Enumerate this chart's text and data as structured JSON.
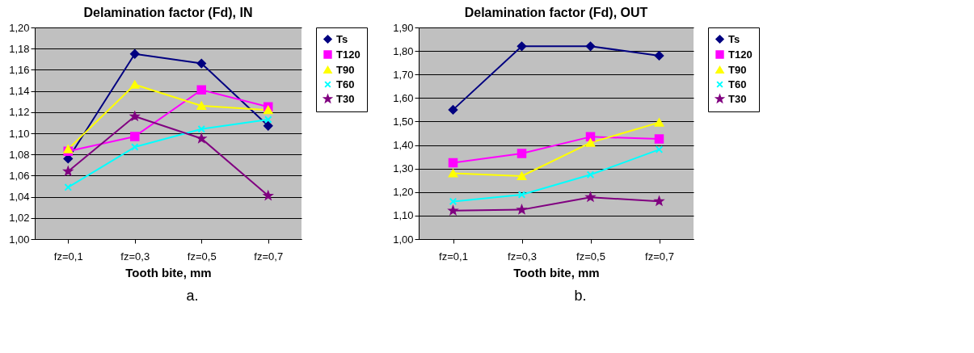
{
  "chart_data": [
    {
      "type": "line",
      "title": "Delamination factor (Fd), IN",
      "xlabel": "Tooth bite, mm",
      "categories": [
        "fz=0,1",
        "fz=0,3",
        "fz=0,5",
        "fz=0,7"
      ],
      "ylim": [
        1.0,
        1.2
      ],
      "yticks": [
        {
          "value": 1.0,
          "label": "1,00"
        },
        {
          "value": 1.02,
          "label": "1,02"
        },
        {
          "value": 1.04,
          "label": "1,04"
        },
        {
          "value": 1.06,
          "label": "1,06"
        },
        {
          "value": 1.08,
          "label": "1,08"
        },
        {
          "value": 1.1,
          "label": "1,10"
        },
        {
          "value": 1.12,
          "label": "1,12"
        },
        {
          "value": 1.14,
          "label": "1,14"
        },
        {
          "value": 1.16,
          "label": "1,16"
        },
        {
          "value": 1.18,
          "label": "1,18"
        },
        {
          "value": 1.2,
          "label": "1,20"
        }
      ],
      "grid": "y",
      "legend": "right",
      "annotations": [
        "a."
      ],
      "series": [
        {
          "name": "Ts",
          "color": "#000080",
          "marker": "diamond",
          "values": [
            1.076,
            1.175,
            1.166,
            1.107
          ]
        },
        {
          "name": "T120",
          "color": "#ff00ff",
          "marker": "square",
          "values": [
            1.083,
            1.097,
            1.141,
            1.125
          ]
        },
        {
          "name": "T90",
          "color": "#ffff00",
          "marker": "triangle",
          "values": [
            1.085,
            1.146,
            1.126,
            1.122
          ]
        },
        {
          "name": "T60",
          "color": "#00ffff",
          "marker": "cross",
          "values": [
            1.049,
            1.087,
            1.104,
            1.113
          ]
        },
        {
          "name": "T30",
          "color": "#800080",
          "marker": "star",
          "values": [
            1.064,
            1.116,
            1.095,
            1.041
          ]
        }
      ]
    },
    {
      "type": "line",
      "title": "Delamination factor (Fd), OUT",
      "xlabel": "Tooth bite, mm",
      "categories": [
        "fz=0,1",
        "fz=0,3",
        "fz=0,5",
        "fz=0,7"
      ],
      "ylim": [
        1.0,
        1.9
      ],
      "yticks": [
        {
          "value": 1.0,
          "label": "1,00"
        },
        {
          "value": 1.1,
          "label": "1,10"
        },
        {
          "value": 1.2,
          "label": "1,20"
        },
        {
          "value": 1.3,
          "label": "1,30"
        },
        {
          "value": 1.4,
          "label": "1,40"
        },
        {
          "value": 1.5,
          "label": "1,50"
        },
        {
          "value": 1.6,
          "label": "1,60"
        },
        {
          "value": 1.7,
          "label": "1,70"
        },
        {
          "value": 1.8,
          "label": "1,80"
        },
        {
          "value": 1.9,
          "label": "1,90"
        }
      ],
      "grid": "y",
      "legend": "right",
      "annotations": [
        "b."
      ],
      "series": [
        {
          "name": "Ts",
          "color": "#000080",
          "marker": "diamond",
          "values": [
            1.55,
            1.82,
            1.82,
            1.78
          ]
        },
        {
          "name": "T120",
          "color": "#ff00ff",
          "marker": "square",
          "values": [
            1.325,
            1.364,
            1.435,
            1.426
          ]
        },
        {
          "name": "T90",
          "color": "#ffff00",
          "marker": "triangle",
          "values": [
            1.28,
            1.268,
            1.41,
            1.496
          ]
        },
        {
          "name": "T60",
          "color": "#00ffff",
          "marker": "cross",
          "values": [
            1.16,
            1.189,
            1.274,
            1.381
          ]
        },
        {
          "name": "T30",
          "color": "#800080",
          "marker": "star",
          "values": [
            1.121,
            1.125,
            1.178,
            1.161
          ]
        }
      ]
    }
  ]
}
